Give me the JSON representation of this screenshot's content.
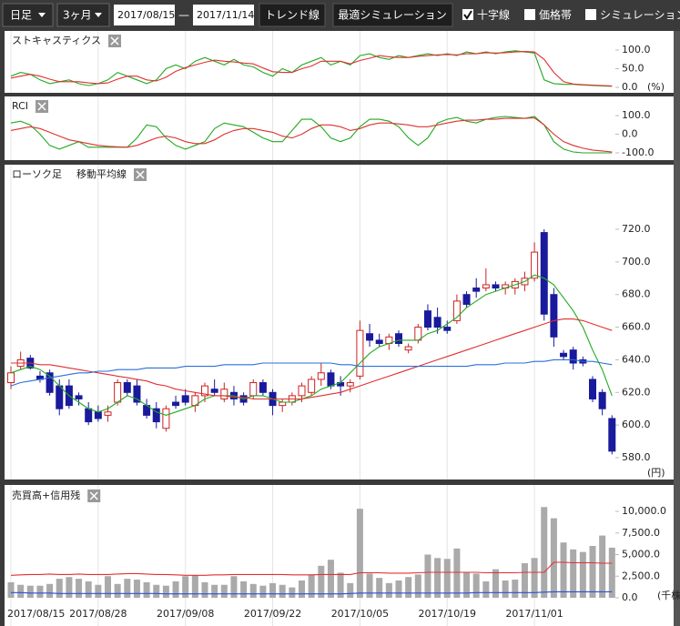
{
  "toolbar": {
    "interval": "日足",
    "range": "3ヶ月",
    "start_date": "2017/08/15",
    "separator": "—",
    "end_date": "2017/11/14",
    "buttons": [
      "トレンド線",
      "最適シミュレーション"
    ],
    "checkboxes": [
      {
        "label": "十字線",
        "checked": true
      },
      {
        "label": "価格帯",
        "checked": false
      },
      {
        "label": "シミュレーション",
        "checked": false
      }
    ]
  },
  "chart_data": [
    {
      "type": "line",
      "title": "ストキャスティクス",
      "unit": "(%)",
      "ylim": [
        0,
        100
      ],
      "yticks": [
        {
          "value": 0,
          "label": "0.0"
        },
        {
          "value": 50,
          "label": "50.0"
        },
        {
          "value": 100,
          "label": "100.0"
        }
      ],
      "series": [
        {
          "color": "#22aa22",
          "values": [
            30,
            40,
            35,
            20,
            10,
            15,
            20,
            10,
            5,
            10,
            20,
            40,
            30,
            20,
            10,
            20,
            50,
            60,
            50,
            70,
            80,
            70,
            60,
            75,
            60,
            55,
            40,
            30,
            50,
            40,
            60,
            70,
            80,
            60,
            70,
            60,
            85,
            90,
            80,
            75,
            85,
            80,
            85,
            90,
            85,
            90,
            85,
            95,
            90,
            95,
            90,
            95,
            98,
            95,
            92,
            20,
            10,
            8,
            8,
            6,
            5,
            4,
            3
          ]
        },
        {
          "color": "#e03030",
          "values": [
            25,
            30,
            35,
            30,
            22,
            15,
            15,
            15,
            12,
            10,
            12,
            22,
            30,
            30,
            20,
            17,
            27,
            43,
            53,
            60,
            67,
            73,
            70,
            68,
            65,
            63,
            52,
            42,
            40,
            40,
            50,
            57,
            70,
            70,
            70,
            63,
            72,
            78,
            85,
            82,
            80,
            80,
            83,
            85,
            87,
            88,
            87,
            90,
            90,
            93,
            92,
            93,
            95,
            96,
            95,
            75,
            40,
            15,
            9,
            7,
            6,
            5,
            4
          ]
        }
      ]
    },
    {
      "type": "line",
      "title": "RCI",
      "ylim": [
        -100,
        100
      ],
      "yticks": [
        {
          "value": -100,
          "label": "-100.0"
        },
        {
          "value": 0,
          "label": "0.0"
        },
        {
          "value": 100,
          "label": "100.0"
        }
      ],
      "series": [
        {
          "color": "#22aa22",
          "values": [
            60,
            70,
            50,
            0,
            -60,
            -80,
            -60,
            -40,
            -70,
            -70,
            -70,
            -70,
            -70,
            -20,
            50,
            40,
            -20,
            -60,
            -80,
            -60,
            -40,
            30,
            60,
            50,
            40,
            10,
            -20,
            -40,
            -40,
            20,
            80,
            80,
            40,
            -20,
            -40,
            -20,
            40,
            80,
            80,
            70,
            40,
            -20,
            -60,
            -20,
            60,
            80,
            90,
            70,
            60,
            80,
            90,
            95,
            90,
            85,
            95,
            50,
            -40,
            -80,
            -95,
            -100,
            -100,
            -100,
            -100
          ]
        },
        {
          "color": "#e03030",
          "values": [
            20,
            30,
            40,
            30,
            10,
            -10,
            -30,
            -40,
            -50,
            -60,
            -65,
            -68,
            -70,
            -60,
            -40,
            -20,
            -10,
            -20,
            -40,
            -50,
            -50,
            -30,
            0,
            20,
            30,
            30,
            20,
            10,
            -10,
            -20,
            0,
            30,
            50,
            50,
            40,
            20,
            30,
            50,
            60,
            60,
            55,
            50,
            40,
            40,
            50,
            60,
            70,
            75,
            75,
            80,
            80,
            85,
            85,
            85,
            88,
            50,
            0,
            -40,
            -60,
            -75,
            -85,
            -90,
            -95
          ]
        }
      ]
    },
    {
      "type": "candlestick",
      "title": "ローソク足",
      "overlay_title": "移動平均線",
      "unit": "(円)",
      "up_color": "#cc2222",
      "down_color": "#1a1a9c",
      "ylim": [
        580,
        720
      ],
      "yticks": [
        {
          "value": 580,
          "label": "580.0"
        },
        {
          "value": 600,
          "label": "600.0"
        },
        {
          "value": 620,
          "label": "620.0"
        },
        {
          "value": 640,
          "label": "640.0"
        },
        {
          "value": 660,
          "label": "660.0"
        },
        {
          "value": 680,
          "label": "680.0"
        },
        {
          "value": 700,
          "label": "700.0"
        },
        {
          "value": 720,
          "label": "720.0"
        }
      ],
      "ohlc": [
        [
          626,
          636,
          622,
          632
        ],
        [
          636,
          645,
          634,
          640
        ],
        [
          641,
          643,
          634,
          635
        ],
        [
          630,
          633,
          626,
          628
        ],
        [
          632,
          634,
          618,
          620
        ],
        [
          624,
          628,
          606,
          610
        ],
        [
          624,
          628,
          610,
          612
        ],
        [
          618,
          620,
          612,
          616
        ],
        [
          610,
          614,
          600,
          602
        ],
        [
          608,
          612,
          602,
          604
        ],
        [
          606,
          612,
          602,
          608
        ],
        [
          614,
          628,
          612,
          626
        ],
        [
          626,
          628,
          618,
          620
        ],
        [
          624,
          628,
          612,
          614
        ],
        [
          612,
          616,
          604,
          606
        ],
        [
          610,
          614,
          598,
          602
        ],
        [
          598,
          612,
          596,
          610
        ],
        [
          614,
          618,
          610,
          612
        ],
        [
          618,
          622,
          612,
          614
        ],
        [
          612,
          620,
          608,
          618
        ],
        [
          618,
          626,
          614,
          624
        ],
        [
          622,
          628,
          618,
          620
        ],
        [
          616,
          626,
          614,
          622
        ],
        [
          620,
          624,
          612,
          616
        ],
        [
          618,
          620,
          612,
          614
        ],
        [
          618,
          628,
          616,
          626
        ],
        [
          626,
          628,
          618,
          620
        ],
        [
          620,
          622,
          606,
          612
        ],
        [
          612,
          616,
          608,
          614
        ],
        [
          614,
          620,
          612,
          618
        ],
        [
          618,
          626,
          614,
          624
        ],
        [
          620,
          630,
          618,
          628
        ],
        [
          628,
          638,
          624,
          632
        ],
        [
          632,
          634,
          622,
          624
        ],
        [
          626,
          630,
          618,
          624
        ],
        [
          624,
          628,
          620,
          626
        ],
        [
          630,
          664,
          628,
          658
        ],
        [
          656,
          662,
          648,
          652
        ],
        [
          652,
          656,
          648,
          650
        ],
        [
          650,
          656,
          646,
          654
        ],
        [
          656,
          658,
          648,
          650
        ],
        [
          646,
          650,
          644,
          648
        ],
        [
          652,
          662,
          650,
          660
        ],
        [
          670,
          674,
          658,
          660
        ],
        [
          666,
          672,
          656,
          660
        ],
        [
          660,
          664,
          656,
          658
        ],
        [
          664,
          680,
          662,
          676
        ],
        [
          680,
          682,
          672,
          674
        ],
        [
          684,
          690,
          678,
          682
        ],
        [
          684,
          696,
          682,
          686
        ],
        [
          686,
          688,
          682,
          684
        ],
        [
          684,
          688,
          680,
          686
        ],
        [
          684,
          690,
          680,
          688
        ],
        [
          686,
          694,
          682,
          690
        ],
        [
          690,
          712,
          688,
          706
        ],
        [
          718,
          720,
          664,
          668
        ],
        [
          680,
          684,
          648,
          654
        ],
        [
          644,
          646,
          640,
          642
        ],
        [
          646,
          648,
          634,
          638
        ],
        [
          640,
          642,
          636,
          638
        ],
        [
          628,
          630,
          614,
          616
        ],
        [
          620,
          622,
          606,
          610
        ],
        [
          604,
          606,
          582,
          584
        ]
      ],
      "series": [
        {
          "color": "#22aa22",
          "values": [
            632,
            634,
            636,
            634,
            630,
            624,
            618,
            614,
            610,
            608,
            610,
            614,
            618,
            616,
            612,
            608,
            606,
            608,
            610,
            612,
            616,
            618,
            618,
            618,
            616,
            618,
            618,
            616,
            614,
            614,
            616,
            618,
            622,
            624,
            626,
            632,
            638,
            644,
            648,
            650,
            652,
            652,
            652,
            656,
            658,
            662,
            666,
            672,
            676,
            680,
            682,
            684,
            686,
            688,
            692,
            690,
            686,
            678,
            670,
            660,
            646,
            634,
            618
          ]
        },
        {
          "color": "#e03030",
          "values": [
            638,
            638,
            638,
            637,
            637,
            636,
            635,
            634,
            633,
            632,
            631,
            630,
            629,
            628,
            627,
            625,
            624,
            622,
            621,
            620,
            619,
            618,
            618,
            617,
            617,
            616,
            616,
            616,
            616,
            616,
            616,
            617,
            618,
            619,
            620,
            622,
            624,
            626,
            628,
            630,
            632,
            634,
            636,
            638,
            640,
            642,
            644,
            646,
            648,
            650,
            652,
            654,
            656,
            658,
            660,
            662,
            664,
            665,
            665,
            664,
            662,
            660,
            658
          ]
        },
        {
          "color": "#2a6fdb",
          "values": [
            624,
            626,
            627,
            628,
            629,
            630,
            631,
            632,
            632,
            633,
            633,
            634,
            634,
            634,
            635,
            635,
            635,
            635,
            636,
            636,
            636,
            636,
            637,
            637,
            637,
            637,
            638,
            638,
            638,
            638,
            638,
            638,
            638,
            638,
            637,
            637,
            636,
            636,
            636,
            636,
            636,
            636,
            636,
            636,
            636,
            636,
            636,
            636,
            637,
            637,
            637,
            638,
            638,
            638,
            639,
            639,
            640,
            640,
            640,
            639,
            639,
            638,
            637
          ]
        }
      ]
    },
    {
      "type": "bar",
      "title": "売買高+信用残",
      "unit": "(千株)",
      "color": "#aaaaaa",
      "ylim": [
        0,
        10000
      ],
      "yticks": [
        {
          "value": 0,
          "label": "0.0"
        },
        {
          "value": 2500,
          "label": "2,500.0"
        },
        {
          "value": 5000,
          "label": "5,000.0"
        },
        {
          "value": 7500,
          "label": "7,500.0"
        },
        {
          "value": 10000,
          "label": "10,000.0"
        }
      ],
      "categories": [
        "2017/08/15",
        null,
        null,
        null,
        null,
        null,
        null,
        null,
        null,
        "2017/08/28",
        null,
        null,
        null,
        null,
        null,
        null,
        null,
        null,
        "2017/09/08",
        null,
        null,
        null,
        null,
        null,
        null,
        null,
        null,
        "2017/09/22",
        null,
        null,
        null,
        null,
        null,
        null,
        null,
        null,
        "2017/10/05",
        null,
        null,
        null,
        null,
        null,
        null,
        null,
        null,
        "2017/10/19",
        null,
        null,
        null,
        null,
        null,
        null,
        null,
        null,
        "2017/11/01",
        null,
        null,
        null,
        null,
        null,
        null,
        null,
        null
      ],
      "values": [
        1800,
        1500,
        1400,
        1400,
        1600,
        2200,
        2400,
        2200,
        1900,
        1500,
        2500,
        1600,
        2200,
        2100,
        1800,
        1500,
        1400,
        1900,
        2500,
        2600,
        1800,
        1500,
        1500,
        2500,
        1900,
        1600,
        1400,
        1700,
        1500,
        1200,
        2000,
        2700,
        3700,
        4400,
        2900,
        1700,
        10300,
        2800,
        2300,
        1700,
        2000,
        2400,
        2700,
        5000,
        4600,
        4500,
        5700,
        3000,
        2800,
        1900,
        3300,
        2000,
        2100,
        4000,
        4600,
        10500,
        9200,
        6400,
        5600,
        5300,
        6000,
        7200,
        5800
      ],
      "series": [
        {
          "color": "#e03030",
          "values": [
            2600,
            2650,
            2700,
            2700,
            2750,
            2700,
            2700,
            2750,
            2700,
            2700,
            2700,
            2750,
            2800,
            2800,
            2750,
            2700,
            2700,
            2650,
            2600,
            2600,
            2600,
            2650,
            2650,
            2700,
            2700,
            2700,
            2700,
            2700,
            2700,
            2650,
            2650,
            2650,
            2700,
            2700,
            2700,
            2700,
            2900,
            2900,
            2900,
            2850,
            2850,
            2850,
            2900,
            2950,
            2950,
            2950,
            2950,
            2950,
            2950,
            2900,
            2900,
            2900,
            2900,
            2950,
            2950,
            2950,
            4100,
            4100,
            4050,
            4050,
            4050,
            4000,
            4000
          ]
        },
        {
          "color": "#2a4fdb",
          "values": [
            600,
            600,
            550,
            550,
            550,
            500,
            500,
            500,
            500,
            500,
            500,
            500,
            500,
            500,
            500,
            500,
            450,
            450,
            450,
            450,
            450,
            450,
            450,
            450,
            450,
            450,
            450,
            450,
            450,
            450,
            450,
            450,
            450,
            450,
            450,
            500,
            550,
            550,
            550,
            550,
            550,
            550,
            550,
            550,
            550,
            550,
            550,
            550,
            600,
            600,
            600,
            600,
            600,
            600,
            600,
            650,
            700,
            700,
            700,
            700,
            700,
            700,
            700
          ]
        }
      ]
    }
  ]
}
